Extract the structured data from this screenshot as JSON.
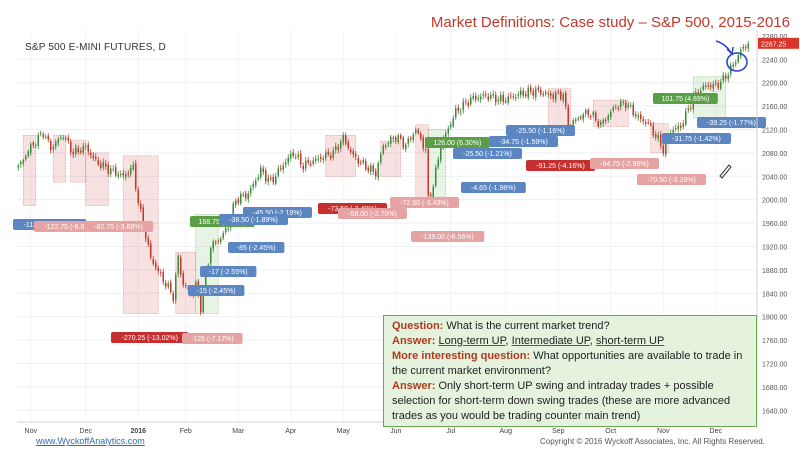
{
  "header": {
    "title": "Market Definitions: Case study – S&P 500, 2015-2016",
    "instrument": "S&P 500 E-MINI FUTURES, D"
  },
  "footer": {
    "website": "www.WyckoffAnalytics.com",
    "copyright": "Copyright © 2016 Wyckoff Associates, Inc. All Rights Reserved."
  },
  "qa": {
    "q_label": "Question:",
    "q_text": "What is the current market trend?",
    "a_label": "Answer:",
    "a_long": "Long-term UP",
    "a_mid": "Intermediate UP",
    "a_short": "short-term UP",
    "sep": ",",
    "more_label": "More interesting question:",
    "more_text": "What opportunities are available to trade in the current market environment?",
    "a2_label": "Answer:",
    "a2_text": "Only short-term UP swing and intraday trades + possible selection for short-term down swing trades (these are more advanced trades as you would be trading counter main trend)"
  },
  "chart_data": {
    "type": "candlestick",
    "title": "Market Definitions: Case study – S&P 500, 2015-2016",
    "instrument": "S&P 500 E-MINI FUTURES, D",
    "ylim": [
      1620,
      2290
    ],
    "yticks": [
      2240,
      2200,
      2160,
      2120,
      2080,
      2040,
      2000,
      1960,
      1920,
      1880,
      1840,
      1800,
      1760,
      1720,
      1680,
      1640
    ],
    "ytick_labels": [
      "2240.00",
      "2200.00",
      "2160.00",
      "2120.00",
      "2080.00",
      "2040.00",
      "2000.00",
      "1960.00",
      "1920.00",
      "1880.00",
      "1840.00",
      "1800.00",
      "1760.00",
      "1720.00",
      "1680.00",
      "1640.00"
    ],
    "top_tick_label": "2280.00",
    "last_price": "2267.25",
    "last_price_color": "#d9362b",
    "xticks": [
      "Nov",
      "Dec",
      "2016",
      "Feb",
      "Mar",
      "Apr",
      "May",
      "Jun",
      "Jul",
      "Aug",
      "Sep",
      "Oct",
      "Nov",
      "Dec",
      "Jan"
    ],
    "xtick_index": [
      5,
      27,
      48,
      67,
      88,
      109,
      130,
      151,
      173,
      195,
      216,
      237,
      258,
      279,
      300
    ],
    "first_date": "2015-10-26",
    "up_color": "#3d8b3d",
    "down_color": "#c0392b",
    "anchors": [
      [
        0,
        2055
      ],
      [
        5,
        2090
      ],
      [
        10,
        2115
      ],
      [
        13,
        2088
      ],
      [
        18,
        2110
      ],
      [
        22,
        2080
      ],
      [
        27,
        2090
      ],
      [
        31,
        2065
      ],
      [
        37,
        2050
      ],
      [
        42,
        2040
      ],
      [
        46,
        2055
      ],
      [
        48,
        1995
      ],
      [
        53,
        1900
      ],
      [
        57,
        1870
      ],
      [
        62,
        1835
      ],
      [
        64,
        1900
      ],
      [
        66,
        1855
      ],
      [
        69,
        1840
      ],
      [
        71,
        1855
      ],
      [
        73,
        1815
      ],
      [
        77,
        1920
      ],
      [
        81,
        1935
      ],
      [
        84,
        1955
      ],
      [
        87,
        2000
      ],
      [
        92,
        2010
      ],
      [
        97,
        2050
      ],
      [
        101,
        2030
      ],
      [
        106,
        2060
      ],
      [
        110,
        2080
      ],
      [
        114,
        2058
      ],
      [
        120,
        2070
      ],
      [
        126,
        2080
      ],
      [
        130,
        2105
      ],
      [
        134,
        2075
      ],
      [
        138,
        2060
      ],
      [
        143,
        2045
      ],
      [
        146,
        2092
      ],
      [
        151,
        2108
      ],
      [
        155,
        2093
      ],
      [
        159,
        2120
      ],
      [
        163,
        2085
      ],
      [
        164,
        2000
      ],
      [
        166,
        2025
      ],
      [
        169,
        2093
      ],
      [
        175,
        2150
      ],
      [
        181,
        2172
      ],
      [
        187,
        2178
      ],
      [
        194,
        2170
      ],
      [
        200,
        2180
      ],
      [
        207,
        2186
      ],
      [
        213,
        2178
      ],
      [
        218,
        2180
      ],
      [
        220,
        2125
      ],
      [
        224,
        2140
      ],
      [
        228,
        2150
      ],
      [
        233,
        2128
      ],
      [
        239,
        2160
      ],
      [
        243,
        2165
      ],
      [
        248,
        2140
      ],
      [
        252,
        2130
      ],
      [
        257,
        2095
      ],
      [
        258,
        2085
      ],
      [
        261,
        2118
      ],
      [
        265,
        2125
      ],
      [
        270,
        2175
      ],
      [
        275,
        2195
      ],
      [
        279,
        2195
      ],
      [
        282,
        2205
      ],
      [
        286,
        2230
      ],
      [
        289,
        2255
      ],
      [
        292,
        2267
      ]
    ],
    "annotations": [
      {
        "text": "168.75 (9.37%)",
        "bg": "#5a9e46"
      },
      {
        "text": "126.00 (6.30%)",
        "bg": "#5a9e46"
      },
      {
        "text": "101.75 (4.89%)",
        "bg": "#5a9e46"
      },
      {
        "text": "-113.50 (-5.37%)",
        "bg": "#5b86c2"
      },
      {
        "text": "-45.50 (-2.19%)",
        "bg": "#5b86c2"
      },
      {
        "text": "-38.50 (-1.89%)",
        "bg": "#5b86c2"
      },
      {
        "text": "-85 (-2.45%)",
        "bg": "#5b86c2"
      },
      {
        "text": "-17 (-2.55%)",
        "bg": "#5b86c2"
      },
      {
        "text": "-15 (-2.45%)",
        "bg": "#5b86c2"
      },
      {
        "text": "-4.65 (-1.98%)",
        "bg": "#5b86c2"
      },
      {
        "text": "-25.50 (-1.21%)",
        "bg": "#5b86c2"
      },
      {
        "text": "-34.75 (-1.59%)",
        "bg": "#5b86c2"
      },
      {
        "text": "-25.50 (-1.16%)",
        "bg": "#5b86c2"
      },
      {
        "text": "-31.75 (-1.42%)",
        "bg": "#5b86c2"
      },
      {
        "text": "-39.25 (-1.77%)",
        "bg": "#5b86c2"
      },
      {
        "text": "-270.25 (-13.02%)",
        "bg": "#c62f2f"
      },
      {
        "text": "-91.25 (-4.16%)",
        "bg": "#c62f2f"
      },
      {
        "text": "-73.50 (-3.49%)",
        "bg": "#c62f2f"
      },
      {
        "text": "-122.75 (-6.83%)",
        "bg": "#e5a3a3"
      },
      {
        "text": "-82.75 (-3.68%)",
        "bg": "#e5a3a3"
      },
      {
        "text": "-125 (-7.17%)",
        "bg": "#e5a3a3"
      },
      {
        "text": "-58.00 (-2.70%)",
        "bg": "#e5a3a3"
      },
      {
        "text": "-72.50 (-3.43%)",
        "bg": "#e5a3a3"
      },
      {
        "text": "-139.00 (-6.56%)",
        "bg": "#e5a3a3"
      },
      {
        "text": "-64.75 (-2.98%)",
        "bg": "#e5a3a3"
      },
      {
        "text": "-70.50 (-3.28%)",
        "bg": "#e5a3a3"
      }
    ],
    "swing_boxes": [
      {
        "kind": "down",
        "from": 2,
        "to": 7,
        "hi": 2110,
        "lo": 1990
      },
      {
        "kind": "down",
        "from": 14,
        "to": 19,
        "hi": 2110,
        "lo": 2030
      },
      {
        "kind": "down",
        "from": 21,
        "to": 27,
        "hi": 2102,
        "lo": 2030
      },
      {
        "kind": "down",
        "from": 27,
        "to": 36,
        "hi": 2080,
        "lo": 1990
      },
      {
        "kind": "down",
        "from": 42,
        "to": 56,
        "hi": 2075,
        "lo": 1805
      },
      {
        "kind": "down",
        "from": 63,
        "to": 71,
        "hi": 1910,
        "lo": 1805
      },
      {
        "kind": "up",
        "from": 71,
        "to": 80,
        "hi": 1975,
        "lo": 1805
      },
      {
        "kind": "down",
        "from": 123,
        "to": 135,
        "hi": 2110,
        "lo": 2040
      },
      {
        "kind": "down",
        "from": 145,
        "to": 153,
        "hi": 2100,
        "lo": 2040
      },
      {
        "kind": "down",
        "from": 159,
        "to": 164,
        "hi": 2128,
        "lo": 1992
      },
      {
        "kind": "up",
        "from": 164,
        "to": 171,
        "hi": 2120,
        "lo": 1992
      },
      {
        "kind": "down",
        "from": 212,
        "to": 221,
        "hi": 2190,
        "lo": 2120
      },
      {
        "kind": "down",
        "from": 230,
        "to": 244,
        "hi": 2170,
        "lo": 2125
      },
      {
        "kind": "down",
        "from": 253,
        "to": 260,
        "hi": 2130,
        "lo": 2080
      },
      {
        "kind": "up",
        "from": 270,
        "to": 283,
        "hi": 2210,
        "lo": 2140
      }
    ]
  }
}
